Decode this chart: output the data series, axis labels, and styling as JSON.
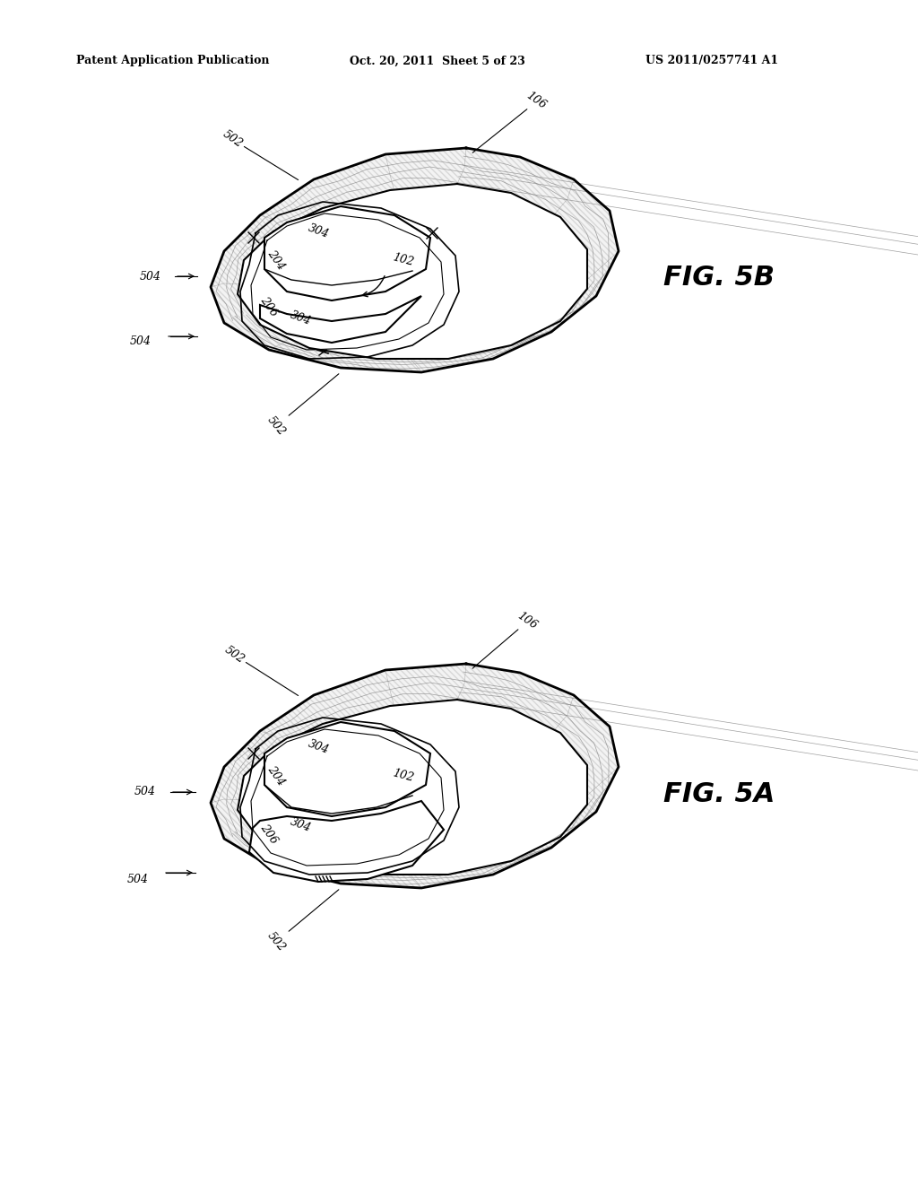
{
  "bg_color": "#ffffff",
  "header_left": "Patent Application Publication",
  "header_mid": "Oct. 20, 2011  Sheet 5 of 23",
  "header_right": "US 2011/0257741 A1",
  "fig_5b_label": "FIG. 5B",
  "fig_5a_label": "FIG. 5A",
  "text_color": "#000000",
  "line_color": "#000000"
}
